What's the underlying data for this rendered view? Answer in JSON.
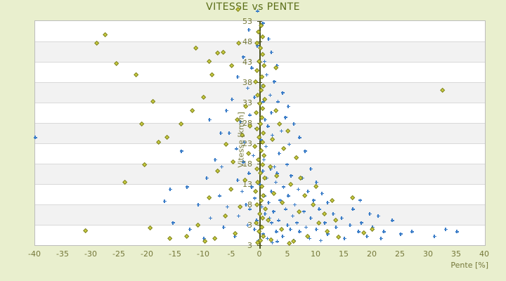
{
  "title": "VITESSE vs PENTE",
  "x_axis": {
    "label": "Pente [%]"
  },
  "y_axis": {
    "label": "Vitesse [km/h]"
  },
  "colors": {
    "background": "#e9efce",
    "title_text": "#5a6e18",
    "tick_text": "#75783a",
    "axis_line": "#4a501d",
    "gridline": "#d9d9d9",
    "plot_border": "#bdbdbd",
    "band_light": "#ffffff",
    "band_dark": "#f2f2f2",
    "series_blue": "#3b7dc8",
    "series_olive_edge": "#7d801f",
    "series_olive_fill": "#c9cd3f"
  },
  "chart_data": {
    "type": "scatter",
    "title": "VITESSE vs PENTE",
    "xlabel": "Pente [%]",
    "ylabel": "Vitesse [km/h]",
    "xlim": [
      -40,
      40
    ],
    "ylim": [
      3,
      53
    ],
    "x_ticks": [
      -40,
      -35,
      -30,
      -25,
      -20,
      -15,
      -10,
      -5,
      0,
      5,
      10,
      15,
      20,
      25,
      30,
      35,
      40
    ],
    "y_tick_labels": [
      "53",
      "48",
      "43",
      "38",
      "33",
      "28",
      "23",
      "18",
      "13",
      "8",
      "3",
      "3"
    ],
    "grid": "horizontal-bands",
    "legend": "none",
    "series": [
      {
        "name": "blue-plus-series",
        "marker": "plus",
        "color": "#3b7dc8",
        "points": [
          [
            -0.4,
            55.2
          ],
          [
            0.5,
            52.5
          ],
          [
            -2,
            51
          ],
          [
            1.5,
            49
          ],
          [
            -0.5,
            47.5
          ],
          [
            2,
            46
          ],
          [
            -3,
            45
          ],
          [
            0.8,
            44
          ],
          [
            3,
            43
          ],
          [
            -1.5,
            42.5
          ],
          [
            1.2,
            41
          ],
          [
            -4,
            40.5
          ],
          [
            2.5,
            39.5
          ],
          [
            0.3,
            38.5
          ],
          [
            -2.2,
            38
          ],
          [
            4,
            37
          ],
          [
            1.8,
            36.5
          ],
          [
            -1,
            36
          ],
          [
            -5,
            35.5
          ],
          [
            3.2,
            35
          ],
          [
            0.6,
            35
          ],
          [
            5,
            34
          ],
          [
            -6,
            33
          ],
          [
            2,
            32.5
          ],
          [
            -1.8,
            32
          ],
          [
            4.5,
            31.5
          ],
          [
            0.9,
            31
          ],
          [
            -3.5,
            30.5
          ],
          [
            6,
            30
          ],
          [
            1.4,
            29.5
          ],
          [
            -0.7,
            29
          ],
          [
            3.8,
            28.5
          ],
          [
            -5.5,
            28
          ],
          [
            2.2,
            27.5
          ],
          [
            7,
            27
          ],
          [
            0.2,
            26.5
          ],
          [
            -2.8,
            26
          ],
          [
            5.2,
            25.5
          ],
          [
            1.1,
            25
          ],
          [
            -4.2,
            24.5
          ],
          [
            8,
            24
          ],
          [
            3.4,
            23.5
          ],
          [
            -1.2,
            23
          ],
          [
            6.5,
            22.5
          ],
          [
            0.7,
            22
          ],
          [
            -3,
            21.5
          ],
          [
            4.8,
            21
          ],
          [
            2.6,
            20.5
          ],
          [
            -6.8,
            20.5
          ],
          [
            9,
            20
          ],
          [
            1.9,
            20
          ],
          [
            -0.4,
            20
          ],
          [
            0.5,
            19.5
          ],
          [
            3,
            19
          ],
          [
            -2,
            19
          ],
          [
            5.5,
            18.5
          ],
          [
            1.2,
            18
          ],
          [
            7.5,
            18
          ],
          [
            -4,
            17.5
          ],
          [
            2.8,
            17
          ],
          [
            10,
            17
          ],
          [
            0.1,
            16.5
          ],
          [
            4.2,
            16
          ],
          [
            -1.5,
            16
          ],
          [
            6.8,
            15.5
          ],
          [
            2,
            15
          ],
          [
            8.5,
            15
          ],
          [
            -3.2,
            15
          ],
          [
            11,
            14.5
          ],
          [
            0.8,
            14
          ],
          [
            5,
            14
          ],
          [
            -0.9,
            13.5
          ],
          [
            3.6,
            13
          ],
          [
            9.5,
            13
          ],
          [
            1.5,
            12.5
          ],
          [
            12,
            12.5
          ],
          [
            -2.5,
            12
          ],
          [
            6.2,
            12
          ],
          [
            0.3,
            11.5
          ],
          [
            4.6,
            11
          ],
          [
            10.5,
            11
          ],
          [
            -1.8,
            11
          ],
          [
            7.8,
            10.5
          ],
          [
            2.4,
            10.5
          ],
          [
            13,
            10
          ],
          [
            0.9,
            10
          ],
          [
            5.8,
            9.5
          ],
          [
            -3.8,
            9.5
          ],
          [
            9,
            9
          ],
          [
            1.7,
            9
          ],
          [
            14.5,
            9
          ],
          [
            3.3,
            8.5
          ],
          [
            -0.6,
            8.5
          ],
          [
            6.6,
            8
          ],
          [
            11.5,
            8
          ],
          [
            2.1,
            8
          ],
          [
            16,
            7.5
          ],
          [
            4.9,
            7.5
          ],
          [
            -2.2,
            7.5
          ],
          [
            8.2,
            7
          ],
          [
            0.4,
            7
          ],
          [
            13.5,
            7
          ],
          [
            5.4,
            6.5
          ],
          [
            -1,
            6.5
          ],
          [
            10,
            6.5
          ],
          [
            2.9,
            6
          ],
          [
            17.5,
            6
          ],
          [
            7,
            6
          ],
          [
            0.6,
            5.5
          ],
          [
            12,
            5.5
          ],
          [
            4,
            5
          ],
          [
            -4.5,
            5
          ],
          [
            19,
            5
          ],
          [
            8.8,
            4.5
          ],
          [
            1.3,
            4.5
          ],
          [
            15,
            4.5
          ],
          [
            6,
            4
          ],
          [
            -0.3,
            4
          ],
          [
            21.5,
            4.5
          ],
          [
            3.1,
            3.8
          ],
          [
            10.8,
            4
          ],
          [
            2.2,
            3.5
          ],
          [
            18,
            8
          ],
          [
            20,
            7
          ],
          [
            22,
            6
          ],
          [
            23.5,
            8.5
          ],
          [
            25,
            5.5
          ],
          [
            27,
            6
          ],
          [
            31,
            5
          ],
          [
            33,
            6.5
          ],
          [
            35,
            6
          ],
          [
            19.5,
            10
          ],
          [
            21,
            9.5
          ],
          [
            16.5,
            11
          ],
          [
            17.8,
            13
          ],
          [
            -40,
            27
          ],
          [
            -8,
            22
          ],
          [
            -9.5,
            18
          ],
          [
            -7.2,
            14
          ],
          [
            -11,
            12
          ],
          [
            -8.8,
            9
          ],
          [
            -6.5,
            7
          ],
          [
            -12.5,
            6.5
          ],
          [
            -10,
            4.5
          ],
          [
            -7,
            28
          ],
          [
            -9,
            31
          ],
          [
            -13,
            16
          ],
          [
            -5.8,
            11.5
          ],
          [
            -15.5,
            8
          ],
          [
            -14,
            24
          ],
          [
            -16,
            15.5
          ],
          [
            -17,
            12.8
          ]
        ]
      },
      {
        "name": "olive-diamond-series",
        "marker": "diamond",
        "color": "#7d801f",
        "points": [
          [
            -3.9,
            55.5
          ],
          [
            0.2,
            52
          ],
          [
            -0.3,
            50.5
          ],
          [
            0.5,
            49.5
          ],
          [
            -0.6,
            48
          ],
          [
            0.1,
            47
          ],
          [
            0.4,
            45.5
          ],
          [
            -0.2,
            44
          ],
          [
            0.7,
            43
          ],
          [
            -0.5,
            42
          ],
          [
            0.3,
            40.5
          ],
          [
            -0.8,
            39.5
          ],
          [
            0.6,
            38.5
          ],
          [
            0.2,
            37.5
          ],
          [
            -0.4,
            36.5
          ],
          [
            0.8,
            35.5
          ],
          [
            -0.1,
            34.5
          ],
          [
            0.5,
            33.5
          ],
          [
            -0.7,
            32.5
          ],
          [
            0.3,
            31.5
          ],
          [
            0.1,
            30
          ],
          [
            -0.5,
            29
          ],
          [
            0.6,
            28
          ],
          [
            -0.2,
            27
          ],
          [
            0.4,
            26
          ],
          [
            -0.9,
            25
          ],
          [
            0.2,
            24
          ],
          [
            0.7,
            23
          ],
          [
            -0.3,
            22
          ],
          [
            0.5,
            21
          ],
          [
            -0.6,
            20
          ],
          [
            0.1,
            19
          ],
          [
            0.8,
            18
          ],
          [
            -0.4,
            17
          ],
          [
            0.3,
            16
          ],
          [
            -0.8,
            15
          ],
          [
            0.6,
            14
          ],
          [
            0.2,
            13
          ],
          [
            -0.5,
            12
          ],
          [
            0.9,
            11
          ],
          [
            -0.1,
            10
          ],
          [
            0.4,
            9
          ],
          [
            -0.7,
            8
          ],
          [
            0.3,
            7
          ],
          [
            -0.2,
            6
          ],
          [
            0.6,
            5
          ],
          [
            0.1,
            4
          ],
          [
            -0.4,
            3.5
          ],
          [
            -2.5,
            34
          ],
          [
            2.8,
            33
          ],
          [
            -4,
            31
          ],
          [
            3.5,
            30
          ],
          [
            -1.8,
            29.5
          ],
          [
            5,
            28.5
          ],
          [
            -3.2,
            27.5
          ],
          [
            2.2,
            26.5
          ],
          [
            -6,
            25.5
          ],
          [
            4.2,
            24.5
          ],
          [
            -2,
            23.5
          ],
          [
            6.5,
            22.5
          ],
          [
            -4.8,
            21.5
          ],
          [
            1.8,
            20.5
          ],
          [
            -7.5,
            19.5
          ],
          [
            3,
            18.5
          ],
          [
            -2.7,
            17.5
          ],
          [
            5.5,
            16.5
          ],
          [
            -5.2,
            15.5
          ],
          [
            2.5,
            14.5
          ],
          [
            -9,
            13.5
          ],
          [
            4,
            12.5
          ],
          [
            -3.5,
            11.5
          ],
          [
            7,
            10.5
          ],
          [
            -6.2,
            9.5
          ],
          [
            1.5,
            8.5
          ],
          [
            -11,
            7.5
          ],
          [
            3.8,
            6.5
          ],
          [
            -4.4,
            5.5
          ],
          [
            8.5,
            5
          ],
          [
            2,
            4.2
          ],
          [
            -8,
            4.5
          ],
          [
            6,
            3.8
          ],
          [
            10.5,
            8
          ],
          [
            12,
            6
          ],
          [
            9.5,
            12
          ],
          [
            11.5,
            10
          ],
          [
            13.5,
            8.5
          ],
          [
            8,
            14
          ],
          [
            10,
            16
          ],
          [
            7.2,
            18
          ],
          [
            12.8,
            13
          ],
          [
            -27.5,
            50
          ],
          [
            -29,
            48
          ],
          [
            -25.5,
            43.5
          ],
          [
            -22,
            41
          ],
          [
            -19,
            35
          ],
          [
            -21,
            30
          ],
          [
            -18,
            26
          ],
          [
            -20.5,
            21
          ],
          [
            -24,
            17
          ],
          [
            -31,
            6.2
          ],
          [
            -19.5,
            6.8
          ],
          [
            -13,
            5
          ],
          [
            -16,
            4.5
          ],
          [
            -11.4,
            47
          ],
          [
            -7.6,
            45.8
          ],
          [
            2.8,
            42.5
          ],
          [
            -10,
            36
          ],
          [
            -12,
            33
          ],
          [
            -8.5,
            41
          ],
          [
            -5,
            43
          ],
          [
            -9,
            44
          ],
          [
            -6.5,
            46
          ],
          [
            -3.8,
            48
          ],
          [
            -14,
            30
          ],
          [
            -16.5,
            27
          ],
          [
            32.5,
            37.5
          ],
          [
            16.5,
            13.5
          ],
          [
            14,
            4.8
          ],
          [
            18.5,
            5.8
          ],
          [
            20,
            6.5
          ],
          [
            -9.8,
            3.8
          ],
          [
            5.2,
            3.4
          ]
        ]
      }
    ]
  }
}
